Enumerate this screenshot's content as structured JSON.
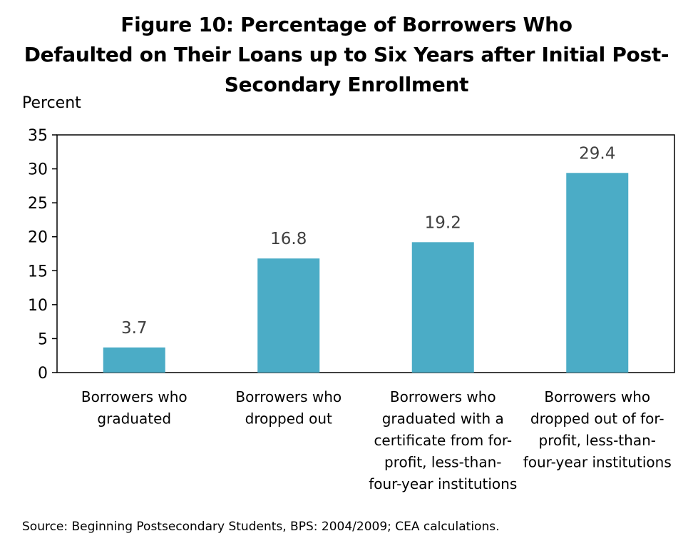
{
  "chart_data": {
    "type": "bar",
    "title_lines": [
      "Figure 10: Percentage of Borrowers Who",
      "Defaulted on Their Loans up to Six Years after Initial Post-",
      "Secondary Enrollment"
    ],
    "ylabel": "Percent",
    "xlabel": "",
    "ylim": [
      0,
      35
    ],
    "yticks": [
      0,
      5,
      10,
      15,
      20,
      25,
      30,
      35
    ],
    "categories": [
      [
        "Borrowers who",
        "graduated"
      ],
      [
        "Borrowers who",
        "dropped out"
      ],
      [
        "Borrowers who",
        "graduated with a",
        "certificate from for-",
        "profit, less-than-",
        "four-year institutions"
      ],
      [
        "Borrowers who",
        "dropped out of for-",
        "profit, less-than-",
        "four-year institutions"
      ]
    ],
    "values": [
      3.7,
      16.8,
      19.2,
      29.4
    ],
    "data_labels": [
      "3.7",
      "16.8",
      "19.2",
      "29.4"
    ],
    "bar_color": "#4BACC6",
    "grid": false,
    "legend": false
  },
  "source": "Source: Beginning Postsecondary Students, BPS: 2004/2009; CEA calculations."
}
